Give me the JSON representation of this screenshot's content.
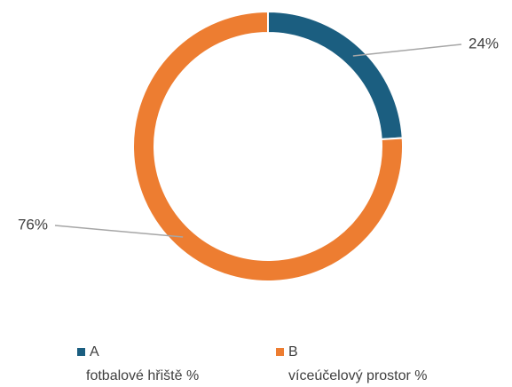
{
  "chart_data": {
    "type": "donut",
    "categories": [
      "A",
      "B"
    ],
    "category_descriptions": [
      "fotbalové hřiště %",
      "víceúčelový prostor %"
    ],
    "values": [
      24,
      76
    ],
    "value_labels": [
      "24%",
      "76%"
    ],
    "colors": [
      "#1b5e80",
      "#ed7d31"
    ],
    "legend": "bottom"
  }
}
